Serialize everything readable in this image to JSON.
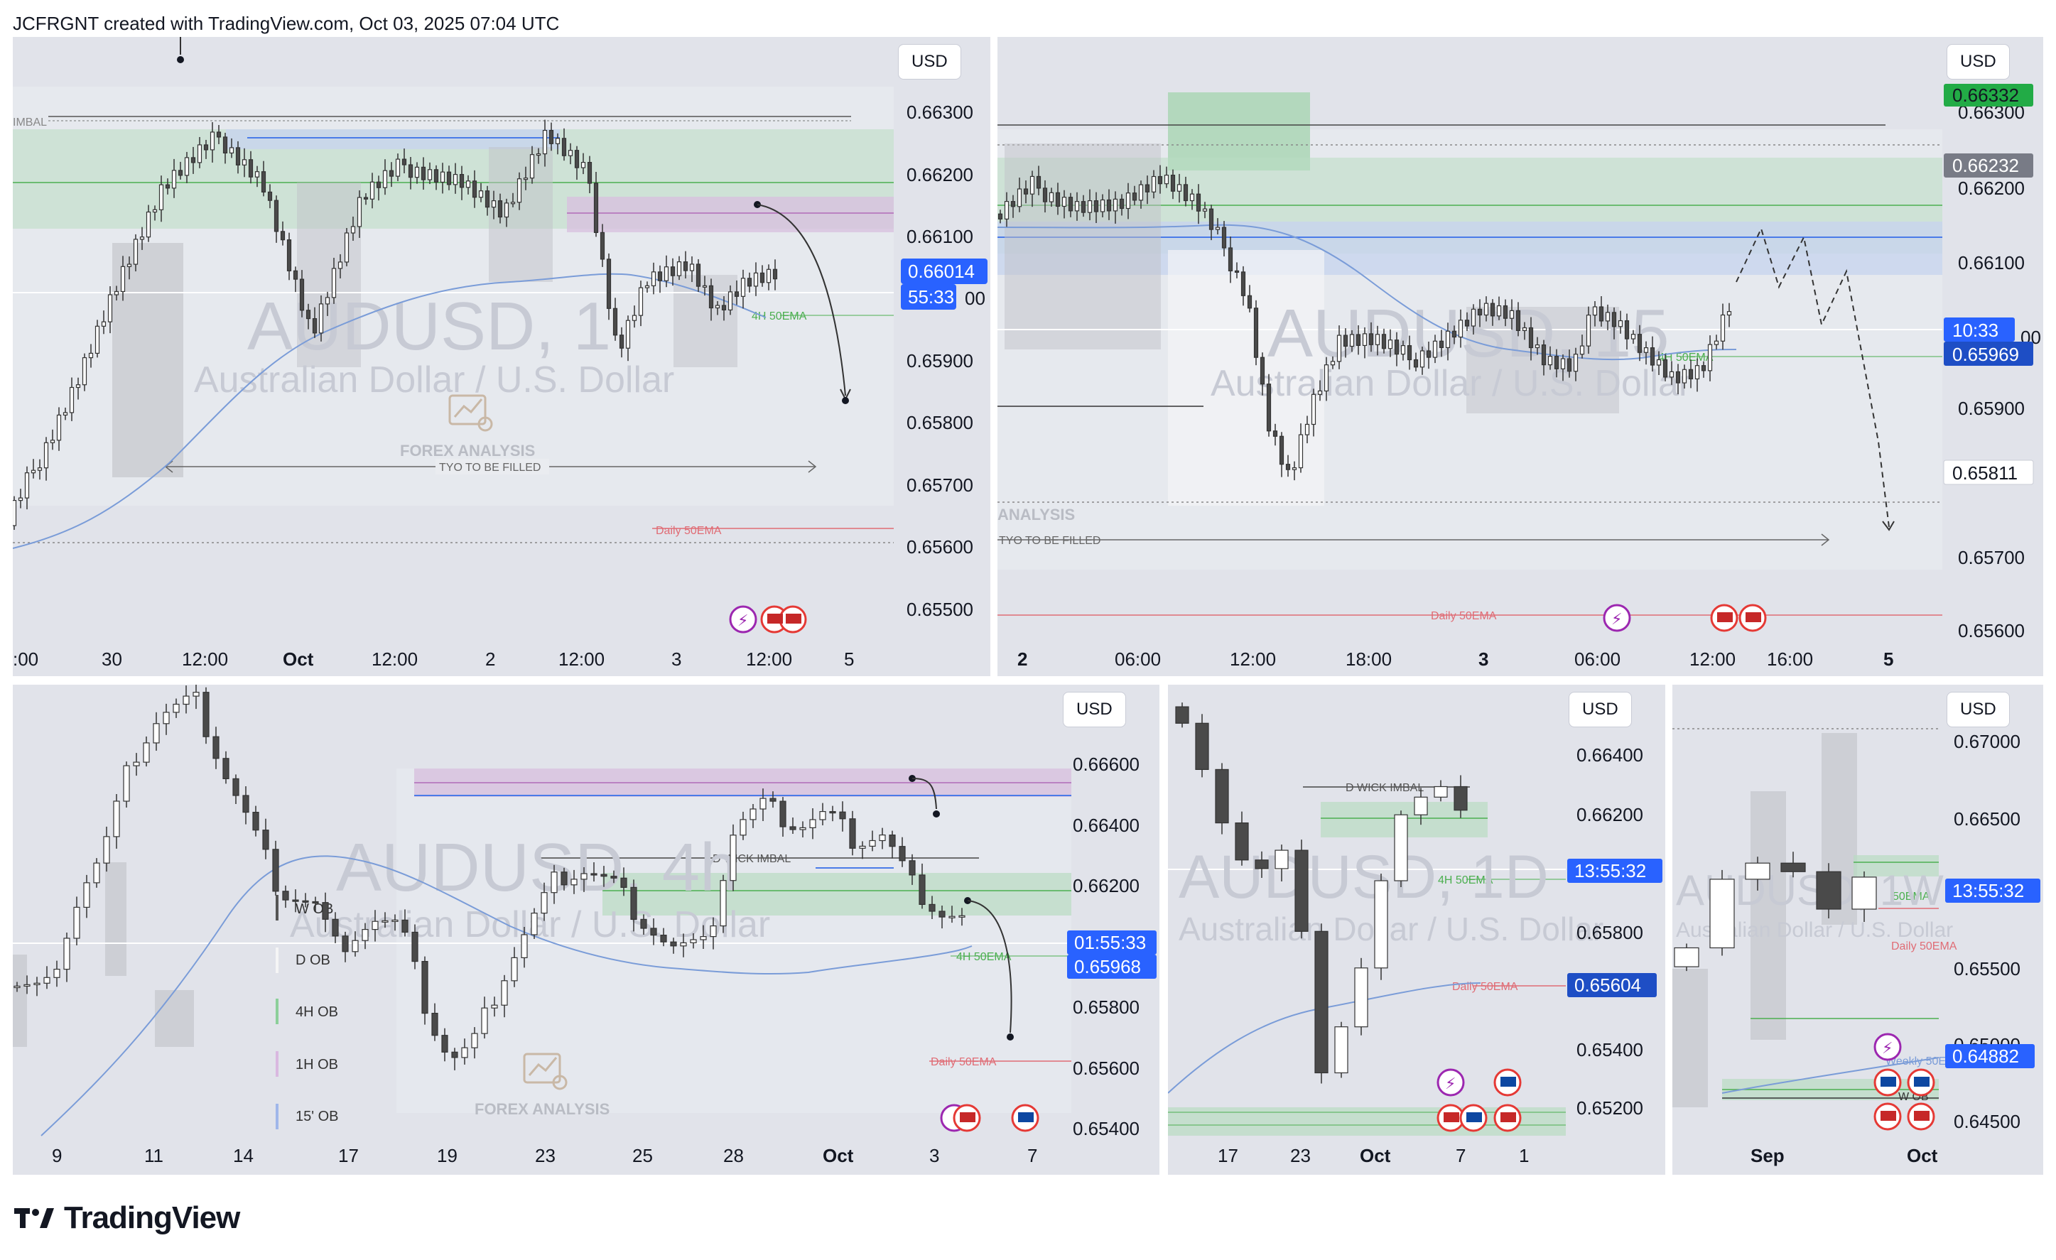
{
  "header": {
    "attribution": "JCFRGNT created with TradingView.com, Oct 03, 2025 07:04 UTC"
  },
  "footer": {
    "brand": "TradingView",
    "logo_icon": "tradingview-logo-icon"
  },
  "colors": {
    "background": "#e1e3ea",
    "candle_up": "#ffffff",
    "candle_down": "#4a4a4a",
    "ema_line": "#7a9cd8",
    "green_zone": "#b7dcc0",
    "purple_zone": "#d9c5e0",
    "blue_zone": "#c8d4ee",
    "price_label_blue": "#2962ff",
    "price_label_green": "#22ab46",
    "daily_ema": "#e06c75"
  },
  "panels": [
    {
      "id": "top-left",
      "currency": "USD",
      "watermark_symbol": "AUDUSD, 1",
      "watermark_name": "Australian Dollar / U.S. Dollar",
      "brand_watermark": "FOREX ANALYSIS",
      "annotations": [
        "4H 50EMA",
        "Daily 50EMA",
        "TYO TO BE  FILLED",
        "IMBAL"
      ],
      "price_ticks": [
        "0.66300",
        "0.66200",
        "0.66100",
        "0.65900",
        "0.65800",
        "0.65700",
        "0.65600",
        "0.65500"
      ],
      "price_label_partial": "00",
      "current_price": "0.66014",
      "countdown": "55:33",
      "time_ticks": [
        ":00",
        "30",
        "12:00",
        "Oct",
        "12:00",
        "2",
        "12:00",
        "3",
        "12:00",
        "5"
      ]
    },
    {
      "id": "top-right",
      "currency": "USD",
      "watermark_symbol": "AUDUSD, 15",
      "watermark_name": "Australian Dollar / U.S. Dollar",
      "brand_watermark": "ANALYSIS",
      "annotations": [
        "4H 50EMA",
        "Daily 50EMA",
        "TYO TO BE  FILLED"
      ],
      "price_ticks": [
        "0.66300",
        "0.66200",
        "0.66100",
        "0.65900",
        "0.65700",
        "0.65600"
      ],
      "price_label_partial": "00",
      "highlight_prices": [
        "0.66332",
        "0.66232",
        "0.65811"
      ],
      "current_price": "0.65969",
      "countdown": "10:33",
      "time_ticks": [
        "2",
        "06:00",
        "12:00",
        "18:00",
        "3",
        "06:00",
        "12:00",
        "16:00",
        "5"
      ]
    },
    {
      "id": "bottom-left",
      "currency": "USD",
      "watermark_symbol": "AUDUSD, 4h",
      "watermark_name": "Australian Dollar / U.S. Dollar",
      "brand_watermark": "FOREX ANALYSIS",
      "annotations": [
        "D WICK IMBAL",
        "4H 50EMA",
        "Daily 50EMA"
      ],
      "legend": [
        "W OB",
        "D OB",
        "4H OB",
        "1H OB",
        "15' OB"
      ],
      "price_ticks": [
        "0.66600",
        "0.66400",
        "0.66200",
        "0.65800",
        "0.65600",
        "0.65400"
      ],
      "current_price": "0.65968",
      "countdown": "01:55:33",
      "time_ticks": [
        "9",
        "11",
        "14",
        "17",
        "19",
        "23",
        "25",
        "28",
        "Oct",
        "3",
        "7"
      ]
    },
    {
      "id": "bottom-middle",
      "currency": "USD",
      "watermark_symbol": "AUDUSD, 1D",
      "watermark_name": "Australian Dollar / U.S. Dollar",
      "annotations": [
        "D WICK IMBAL",
        "4H 50EMA",
        "Daily 50EMA"
      ],
      "price_ticks": [
        "0.66400",
        "0.66200",
        "0.65800",
        "0.65400",
        "0.65200"
      ],
      "current_price": "0.65604",
      "countdown": "13:55:32",
      "time_ticks": [
        "17",
        "23",
        "Oct",
        "7",
        "1"
      ]
    },
    {
      "id": "bottom-right",
      "currency": "USD",
      "watermark_symbol": "AUDUSD, 1W",
      "watermark_name": "Australian Dollar / U.S. Dollar",
      "annotations": [
        "50EMA",
        "Daily 50EMA",
        "Weekly 50EMA",
        "W OB"
      ],
      "price_ticks": [
        "0.67000",
        "0.66500",
        "0.65500",
        "0.65000",
        "0.64500"
      ],
      "current_price": "0.64882",
      "countdown": "13:55:32",
      "time_ticks": [
        "Sep",
        "Oct"
      ]
    }
  ],
  "chart_data": [
    {
      "type": "candlestick",
      "symbol": "AUDUSD",
      "timeframe": "1",
      "ylim": [
        0.6545,
        0.6634
      ],
      "price_levels": {
        "current": 0.66014,
        "ema_4h": 0.6596,
        "ema_daily": 0.6561
      },
      "x": [
        ":00",
        "30",
        "12:00",
        "Oct",
        "12:00",
        "2",
        "12:00",
        "3",
        "12:00",
        "5"
      ]
    },
    {
      "type": "candlestick",
      "symbol": "AUDUSD",
      "timeframe": "15",
      "ylim": [
        0.6556,
        0.6636
      ],
      "price_levels": {
        "current": 0.65969,
        "marked_high": 0.66332,
        "marked_mid": 0.66232,
        "marked_low": 0.65811,
        "ema_daily": 0.6561
      },
      "x": [
        "2",
        "06:00",
        "12:00",
        "18:00",
        "3",
        "06:00",
        "12:00",
        "16:00",
        "5"
      ]
    },
    {
      "type": "candlestick",
      "symbol": "AUDUSD",
      "timeframe": "4h",
      "ylim": [
        0.6535,
        0.6675
      ],
      "price_levels": {
        "current": 0.65968,
        "ema_4h": 0.6593,
        "ema_daily": 0.6565
      },
      "x": [
        "9",
        "11",
        "14",
        "17",
        "19",
        "23",
        "25",
        "28",
        "Oct",
        "3",
        "7"
      ]
    },
    {
      "type": "candlestick",
      "symbol": "AUDUSD",
      "timeframe": "1D",
      "ylim": [
        0.651,
        0.666
      ],
      "price_levels": {
        "current": 0.65604,
        "ema_daily": 0.6561
      },
      "x": [
        "17",
        "23",
        "Oct",
        "7",
        "1"
      ]
    },
    {
      "type": "candlestick",
      "symbol": "AUDUSD",
      "timeframe": "1W",
      "ylim": [
        0.643,
        0.6715
      ],
      "price_levels": {
        "current": 0.64882,
        "ema_weekly": 0.6495
      },
      "x": [
        "Sep",
        "Oct"
      ]
    }
  ]
}
